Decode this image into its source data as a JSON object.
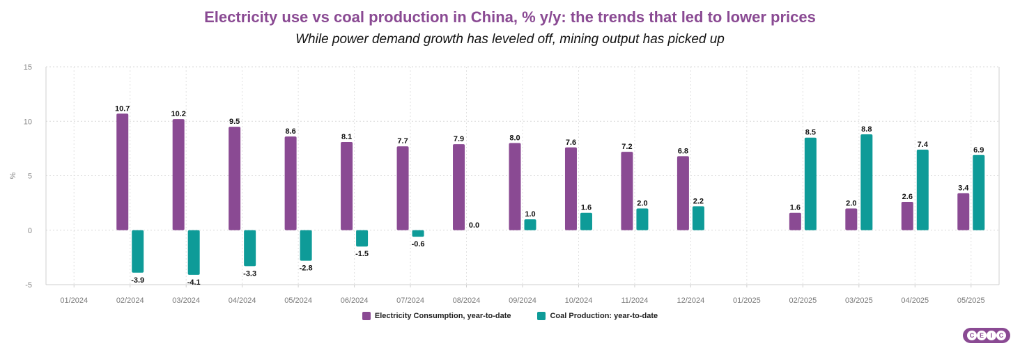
{
  "chart_data": {
    "type": "bar",
    "title": "Electricity use vs coal production in China, % y/y: the trends that led to lower prices",
    "subtitle": "While power demand growth has leveled off, mining output has picked up",
    "ylabel": "%",
    "xlabel": "",
    "ylim": [
      -5,
      15
    ],
    "yticks": [
      -5,
      0,
      5,
      10,
      15
    ],
    "grid": true,
    "legend_position": "bottom",
    "categories": [
      "01/2024",
      "02/2024",
      "03/2024",
      "04/2024",
      "05/2024",
      "06/2024",
      "07/2024",
      "08/2024",
      "09/2024",
      "10/2024",
      "11/2024",
      "12/2024",
      "01/2025",
      "02/2025",
      "03/2025",
      "04/2025",
      "05/2025"
    ],
    "series": [
      {
        "name": "Electricity Consumption, year-to-date",
        "color": "#8a4a93",
        "values": [
          null,
          10.7,
          10.2,
          9.5,
          8.6,
          8.1,
          7.7,
          7.9,
          8.0,
          7.6,
          7.2,
          6.8,
          null,
          1.6,
          2.0,
          2.6,
          3.4
        ],
        "labels": [
          "",
          "10.7",
          "10.2",
          "9.5",
          "8.6",
          "8.1",
          "7.7",
          "7.9",
          "8.0",
          "7.6",
          "7.2",
          "6.8",
          "",
          "1.6",
          "2.0",
          "2.6",
          "3.4"
        ]
      },
      {
        "name": "Coal Production: year-to-date",
        "color": "#0e9b98",
        "values": [
          null,
          -3.9,
          -4.1,
          -3.3,
          -2.8,
          -1.5,
          -0.6,
          0.0,
          1.0,
          1.6,
          2.0,
          2.2,
          null,
          8.5,
          8.8,
          7.4,
          6.9
        ],
        "labels": [
          "",
          "-3.9",
          "-4.1",
          "-3.3",
          "-2.8",
          "-1.5",
          "-0.6",
          "0.0",
          "1.0",
          "1.6",
          "2.0",
          "2.2",
          "",
          "8.5",
          "8.8",
          "7.4",
          "6.9"
        ]
      }
    ]
  },
  "logo": {
    "letters": [
      "C",
      "E",
      "I",
      "C"
    ]
  }
}
